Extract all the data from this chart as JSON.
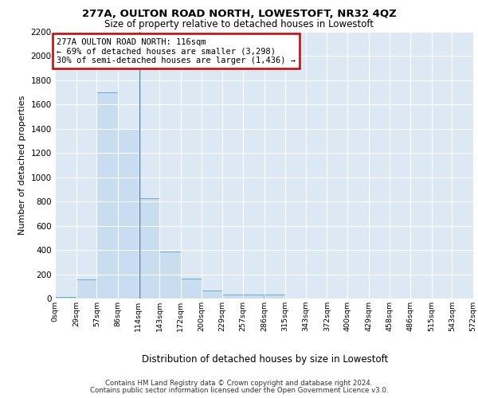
{
  "title1": "277A, OULTON ROAD NORTH, LOWESTOFT, NR32 4QZ",
  "title2": "Size of property relative to detached houses in Lowestoft",
  "xlabel": "Distribution of detached houses by size in Lowestoft",
  "ylabel": "Number of detached properties",
  "bar_color": "#c8ddf0",
  "bar_edge_color": "#6aaad4",
  "annotation_line_color": "#4a7fb5",
  "bg_color": "#dce9f5",
  "grid_color": "#ffffff",
  "bin_edges": [
    0,
    29,
    57,
    86,
    114,
    143,
    172,
    200,
    229,
    257,
    286,
    315,
    343,
    372,
    400,
    429,
    458,
    486,
    515,
    543,
    572
  ],
  "bin_labels": [
    "0sqm",
    "29sqm",
    "57sqm",
    "86sqm",
    "114sqm",
    "143sqm",
    "172sqm",
    "200sqm",
    "229sqm",
    "257sqm",
    "286sqm",
    "315sqm",
    "343sqm",
    "372sqm",
    "400sqm",
    "429sqm",
    "458sqm",
    "486sqm",
    "515sqm",
    "543sqm",
    "572sqm"
  ],
  "bar_heights": [
    15,
    155,
    1700,
    1400,
    830,
    385,
    165,
    65,
    35,
    30,
    30,
    0,
    0,
    0,
    0,
    0,
    0,
    0,
    0,
    0
  ],
  "property_size": 116,
  "annotation_line1": "277A OULTON ROAD NORTH: 116sqm",
  "annotation_line2": "← 69% of detached houses are smaller (3,298)",
  "annotation_line3": "30% of semi-detached houses are larger (1,436) →",
  "annotation_box_color": "white",
  "annotation_box_edge_color": "#cc0000",
  "ylim": [
    0,
    2200
  ],
  "yticks": [
    0,
    200,
    400,
    600,
    800,
    1000,
    1200,
    1400,
    1600,
    1800,
    2000,
    2200
  ],
  "footer1": "Contains HM Land Registry data © Crown copyright and database right 2024.",
  "footer2": "Contains public sector information licensed under the Open Government Licence v3.0."
}
